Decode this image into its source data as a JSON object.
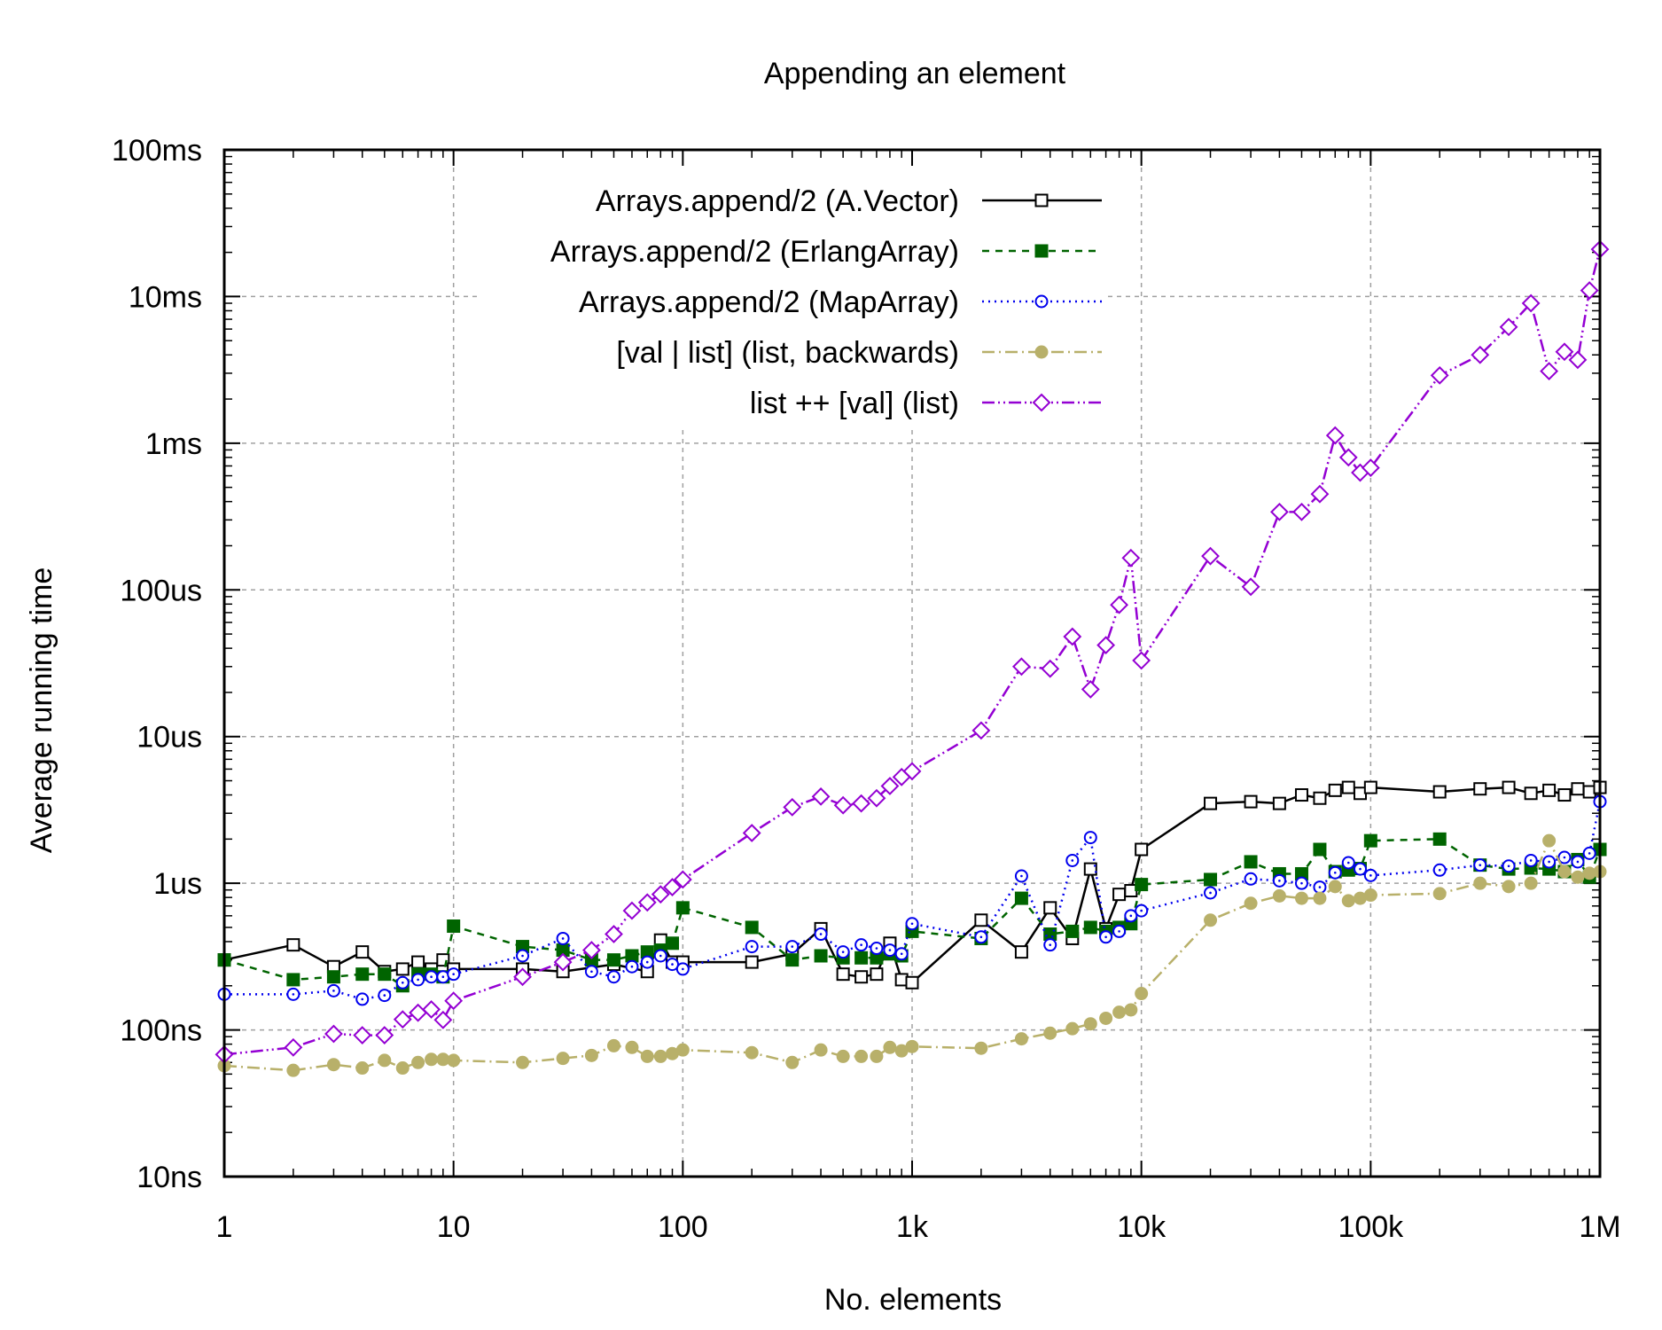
{
  "chart_data": {
    "type": "line",
    "title": "Appending an element",
    "xlabel": "No. elements",
    "ylabel": "Average running time",
    "xscale": "log",
    "yscale": "log",
    "xlim": [
      1,
      1000000
    ],
    "ylim": [
      1e-08,
      0.1
    ],
    "grid": true,
    "legend_position": "top-center",
    "x_ticks": [
      {
        "value": 1,
        "label": "1"
      },
      {
        "value": 10,
        "label": "10"
      },
      {
        "value": 100,
        "label": "100"
      },
      {
        "value": 1000,
        "label": "1k"
      },
      {
        "value": 10000,
        "label": "10k"
      },
      {
        "value": 100000,
        "label": "100k"
      },
      {
        "value": 1000000,
        "label": "1M"
      }
    ],
    "y_ticks": [
      {
        "value": 1e-08,
        "label": "10ns"
      },
      {
        "value": 1e-07,
        "label": "100ns"
      },
      {
        "value": 1e-06,
        "label": "1us"
      },
      {
        "value": 1e-05,
        "label": "10us"
      },
      {
        "value": 0.0001,
        "label": "100us"
      },
      {
        "value": 0.001,
        "label": "1ms"
      },
      {
        "value": 0.01,
        "label": "10ms"
      },
      {
        "value": 0.1,
        "label": "100ms"
      }
    ],
    "series": [
      {
        "name": "Arrays.append/2 (A.Vector)",
        "color": "#000000",
        "dash": "",
        "marker": "square-open",
        "points": [
          [
            1,
            3e-07
          ],
          [
            2,
            3.8e-07
          ],
          [
            3,
            2.7e-07
          ],
          [
            4,
            3.4e-07
          ],
          [
            5,
            2.5e-07
          ],
          [
            6,
            2.6e-07
          ],
          [
            7,
            2.9e-07
          ],
          [
            8,
            2.6e-07
          ],
          [
            9,
            3e-07
          ],
          [
            10,
            2.6e-07
          ],
          [
            20,
            2.6e-07
          ],
          [
            30,
            2.5e-07
          ],
          [
            50,
            2.8e-07
          ],
          [
            70,
            2.5e-07
          ],
          [
            80,
            4.1e-07
          ],
          [
            90,
            2.9e-07
          ],
          [
            100,
            2.9e-07
          ],
          [
            200,
            2.9e-07
          ],
          [
            300,
            3.3e-07
          ],
          [
            400,
            4.9e-07
          ],
          [
            500,
            2.4e-07
          ],
          [
            600,
            2.3e-07
          ],
          [
            700,
            2.4e-07
          ],
          [
            800,
            3.9e-07
          ],
          [
            900,
            2.2e-07
          ],
          [
            1000,
            2.1e-07
          ],
          [
            2000,
            5.6e-07
          ],
          [
            3000,
            3.4e-07
          ],
          [
            4000,
            6.8e-07
          ],
          [
            5000,
            4.2e-07
          ],
          [
            6000,
            1.25e-06
          ],
          [
            7000,
            4.9e-07
          ],
          [
            8000,
            8.4e-07
          ],
          [
            9000,
            8.9e-07
          ],
          [
            10000,
            1.7e-06
          ],
          [
            20000,
            3.5e-06
          ],
          [
            30000,
            3.6e-06
          ],
          [
            40000,
            3.5e-06
          ],
          [
            50000,
            4e-06
          ],
          [
            60000,
            3.8e-06
          ],
          [
            70000,
            4.3e-06
          ],
          [
            80000,
            4.5e-06
          ],
          [
            90000,
            4.1e-06
          ],
          [
            100000,
            4.5e-06
          ],
          [
            200000,
            4.2e-06
          ],
          [
            300000,
            4.4e-06
          ],
          [
            400000,
            4.5e-06
          ],
          [
            500000,
            4.1e-06
          ],
          [
            600000,
            4.3e-06
          ],
          [
            700000,
            4e-06
          ],
          [
            800000,
            4.4e-06
          ],
          [
            900000,
            4.2e-06
          ],
          [
            1000000,
            4.5e-06
          ]
        ]
      },
      {
        "name": "Arrays.append/2 (ErlangArray)",
        "color": "#006400",
        "dash": "8,7",
        "marker": "square-filled",
        "points": [
          [
            1,
            3e-07
          ],
          [
            2,
            2.2e-07
          ],
          [
            3,
            2.3e-07
          ],
          [
            4,
            2.4e-07
          ],
          [
            5,
            2.4e-07
          ],
          [
            6,
            2e-07
          ],
          [
            7,
            2.4e-07
          ],
          [
            8,
            2.4e-07
          ],
          [
            9,
            2.3e-07
          ],
          [
            10,
            5.1e-07
          ],
          [
            20,
            3.7e-07
          ],
          [
            30,
            3.5e-07
          ],
          [
            40,
            3e-07
          ],
          [
            50,
            3e-07
          ],
          [
            60,
            3.2e-07
          ],
          [
            70,
            3.4e-07
          ],
          [
            80,
            3.5e-07
          ],
          [
            90,
            3.9e-07
          ],
          [
            100,
            6.8e-07
          ],
          [
            200,
            5e-07
          ],
          [
            300,
            3e-07
          ],
          [
            400,
            3.2e-07
          ],
          [
            500,
            3.1e-07
          ],
          [
            600,
            3.1e-07
          ],
          [
            700,
            3.1e-07
          ],
          [
            800,
            3.3e-07
          ],
          [
            900,
            3.2e-07
          ],
          [
            1000,
            4.7e-07
          ],
          [
            2000,
            4.2e-07
          ],
          [
            3000,
            7.9e-07
          ],
          [
            4000,
            4.5e-07
          ],
          [
            5000,
            4.7e-07
          ],
          [
            6000,
            5e-07
          ],
          [
            7000,
            4.7e-07
          ],
          [
            8000,
            5e-07
          ],
          [
            9000,
            5.3e-07
          ],
          [
            10000,
            9.8e-07
          ],
          [
            20000,
            1.06e-06
          ],
          [
            30000,
            1.4e-06
          ],
          [
            40000,
            1.16e-06
          ],
          [
            50000,
            1.16e-06
          ],
          [
            60000,
            1.7e-06
          ],
          [
            70000,
            1.2e-06
          ],
          [
            80000,
            1.23e-06
          ],
          [
            90000,
            1.26e-06
          ],
          [
            100000,
            1.95e-06
          ],
          [
            200000,
            2e-06
          ],
          [
            300000,
            1.33e-06
          ],
          [
            400000,
            1.25e-06
          ],
          [
            500000,
            1.27e-06
          ],
          [
            600000,
            1.25e-06
          ],
          [
            700000,
            1.2e-06
          ],
          [
            800000,
            1.45e-06
          ],
          [
            900000,
            1.1e-06
          ],
          [
            1000000,
            1.7e-06
          ]
        ]
      },
      {
        "name": "Arrays.append/2 (MapArray)",
        "color": "#0000ee",
        "dash": "2,5",
        "marker": "circle-open",
        "points": [
          [
            1,
            1.75e-07
          ],
          [
            2,
            1.75e-07
          ],
          [
            3,
            1.85e-07
          ],
          [
            4,
            1.62e-07
          ],
          [
            5,
            1.72e-07
          ],
          [
            6,
            2.1e-07
          ],
          [
            7,
            2.2e-07
          ],
          [
            8,
            2.3e-07
          ],
          [
            9,
            2.3e-07
          ],
          [
            10,
            2.4e-07
          ],
          [
            20,
            3.2e-07
          ],
          [
            30,
            4.2e-07
          ],
          [
            40,
            2.5e-07
          ],
          [
            50,
            2.3e-07
          ],
          [
            60,
            2.7e-07
          ],
          [
            70,
            2.9e-07
          ],
          [
            80,
            3.2e-07
          ],
          [
            90,
            2.8e-07
          ],
          [
            100,
            2.6e-07
          ],
          [
            200,
            3.7e-07
          ],
          [
            300,
            3.7e-07
          ],
          [
            400,
            4.5e-07
          ],
          [
            500,
            3.4e-07
          ],
          [
            600,
            3.8e-07
          ],
          [
            700,
            3.6e-07
          ],
          [
            800,
            3.5e-07
          ],
          [
            900,
            3.3e-07
          ],
          [
            1000,
            5.3e-07
          ],
          [
            2000,
            4.3e-07
          ],
          [
            3000,
            1.12e-06
          ],
          [
            4000,
            3.8e-07
          ],
          [
            5000,
            1.43e-06
          ],
          [
            6000,
            2.05e-06
          ],
          [
            7000,
            4.3e-07
          ],
          [
            8000,
            4.7e-07
          ],
          [
            9000,
            6e-07
          ],
          [
            10000,
            6.5e-07
          ],
          [
            20000,
            8.6e-07
          ],
          [
            30000,
            1.07e-06
          ],
          [
            40000,
            1.04e-06
          ],
          [
            50000,
            1e-06
          ],
          [
            60000,
            9.4e-07
          ],
          [
            70000,
            1.18e-06
          ],
          [
            80000,
            1.38e-06
          ],
          [
            90000,
            1.25e-06
          ],
          [
            100000,
            1.13e-06
          ],
          [
            200000,
            1.23e-06
          ],
          [
            300000,
            1.33e-06
          ],
          [
            400000,
            1.31e-06
          ],
          [
            500000,
            1.43e-06
          ],
          [
            600000,
            1.4e-06
          ],
          [
            700000,
            1.5e-06
          ],
          [
            800000,
            1.4e-06
          ],
          [
            900000,
            1.6e-06
          ],
          [
            1000000,
            3.6e-06
          ]
        ]
      },
      {
        "name": "[val | list] (list, backwards)",
        "color": "#b8b06a",
        "dash": "14,5,2,5",
        "marker": "circle-filled",
        "points": [
          [
            1,
            5.7e-08
          ],
          [
            2,
            5.3e-08
          ],
          [
            3,
            5.8e-08
          ],
          [
            4,
            5.5e-08
          ],
          [
            5,
            6.2e-08
          ],
          [
            6,
            5.5e-08
          ],
          [
            7,
            6e-08
          ],
          [
            8,
            6.3e-08
          ],
          [
            9,
            6.3e-08
          ],
          [
            10,
            6.2e-08
          ],
          [
            20,
            6e-08
          ],
          [
            30,
            6.4e-08
          ],
          [
            40,
            6.7e-08
          ],
          [
            50,
            7.8e-08
          ],
          [
            60,
            7.6e-08
          ],
          [
            70,
            6.6e-08
          ],
          [
            80,
            6.6e-08
          ],
          [
            90,
            6.9e-08
          ],
          [
            100,
            7.3e-08
          ],
          [
            200,
            7e-08
          ],
          [
            300,
            6e-08
          ],
          [
            400,
            7.3e-08
          ],
          [
            500,
            6.6e-08
          ],
          [
            600,
            6.6e-08
          ],
          [
            700,
            6.6e-08
          ],
          [
            800,
            7.6e-08
          ],
          [
            900,
            7.2e-08
          ],
          [
            1000,
            7.7e-08
          ],
          [
            2000,
            7.5e-08
          ],
          [
            3000,
            8.7e-08
          ],
          [
            4000,
            9.5e-08
          ],
          [
            5000,
            1.02e-07
          ],
          [
            6000,
            1.1e-07
          ],
          [
            7000,
            1.2e-07
          ],
          [
            8000,
            1.32e-07
          ],
          [
            9000,
            1.37e-07
          ],
          [
            10000,
            1.77e-07
          ],
          [
            20000,
            5.6e-07
          ],
          [
            30000,
            7.3e-07
          ],
          [
            40000,
            8.2e-07
          ],
          [
            50000,
            7.9e-07
          ],
          [
            60000,
            7.9e-07
          ],
          [
            70000,
            9.5e-07
          ],
          [
            80000,
            7.6e-07
          ],
          [
            90000,
            7.9e-07
          ],
          [
            100000,
            8.3e-07
          ],
          [
            200000,
            8.5e-07
          ],
          [
            300000,
            1e-06
          ],
          [
            400000,
            9.5e-07
          ],
          [
            500000,
            1e-06
          ],
          [
            600000,
            1.95e-06
          ],
          [
            700000,
            1.2e-06
          ],
          [
            800000,
            1.1e-06
          ],
          [
            900000,
            1.17e-06
          ],
          [
            1000000,
            1.2e-06
          ]
        ]
      },
      {
        "name": "list ++ [val] (list)",
        "color": "#9400d3",
        "dash": "14,4,2,4,2,4",
        "marker": "diamond-open",
        "points": [
          [
            1,
            6.8e-08
          ],
          [
            2,
            7.6e-08
          ],
          [
            3,
            9.4e-08
          ],
          [
            4,
            9.2e-08
          ],
          [
            5,
            9.2e-08
          ],
          [
            6,
            1.18e-07
          ],
          [
            7,
            1.31e-07
          ],
          [
            8,
            1.38e-07
          ],
          [
            9,
            1.17e-07
          ],
          [
            10,
            1.58e-07
          ],
          [
            20,
            2.3e-07
          ],
          [
            30,
            2.9e-07
          ],
          [
            40,
            3.5e-07
          ],
          [
            50,
            4.5e-07
          ],
          [
            60,
            6.5e-07
          ],
          [
            70,
            7.4e-07
          ],
          [
            80,
            8.4e-07
          ],
          [
            90,
            9.4e-07
          ],
          [
            100,
            1.06e-06
          ],
          [
            200,
            2.2e-06
          ],
          [
            300,
            3.3e-06
          ],
          [
            400,
            3.9e-06
          ],
          [
            500,
            3.4e-06
          ],
          [
            600,
            3.5e-06
          ],
          [
            700,
            3.8e-06
          ],
          [
            800,
            4.6e-06
          ],
          [
            900,
            5.3e-06
          ],
          [
            1000,
            5.8e-06
          ],
          [
            2000,
            1.1e-05
          ],
          [
            3000,
            3e-05
          ],
          [
            4000,
            2.9e-05
          ],
          [
            5000,
            4.8e-05
          ],
          [
            6000,
            2.1e-05
          ],
          [
            7000,
            4.2e-05
          ],
          [
            8000,
            7.9e-05
          ],
          [
            9000,
            0.000165
          ],
          [
            10000,
            3.3e-05
          ],
          [
            20000,
            0.00017
          ],
          [
            30000,
            0.000105
          ],
          [
            40000,
            0.00034
          ],
          [
            50000,
            0.00034
          ],
          [
            60000,
            0.00045
          ],
          [
            70000,
            0.00113
          ],
          [
            80000,
            0.0008
          ],
          [
            90000,
            0.00063
          ],
          [
            100000,
            0.00068
          ],
          [
            200000,
            0.0029
          ],
          [
            300000,
            0.004
          ],
          [
            400000,
            0.0062
          ],
          [
            500000,
            0.009
          ],
          [
            600000,
            0.0031
          ],
          [
            700000,
            0.0042
          ],
          [
            800000,
            0.0037
          ],
          [
            900000,
            0.011
          ],
          [
            1000000,
            0.021
          ]
        ]
      }
    ]
  }
}
